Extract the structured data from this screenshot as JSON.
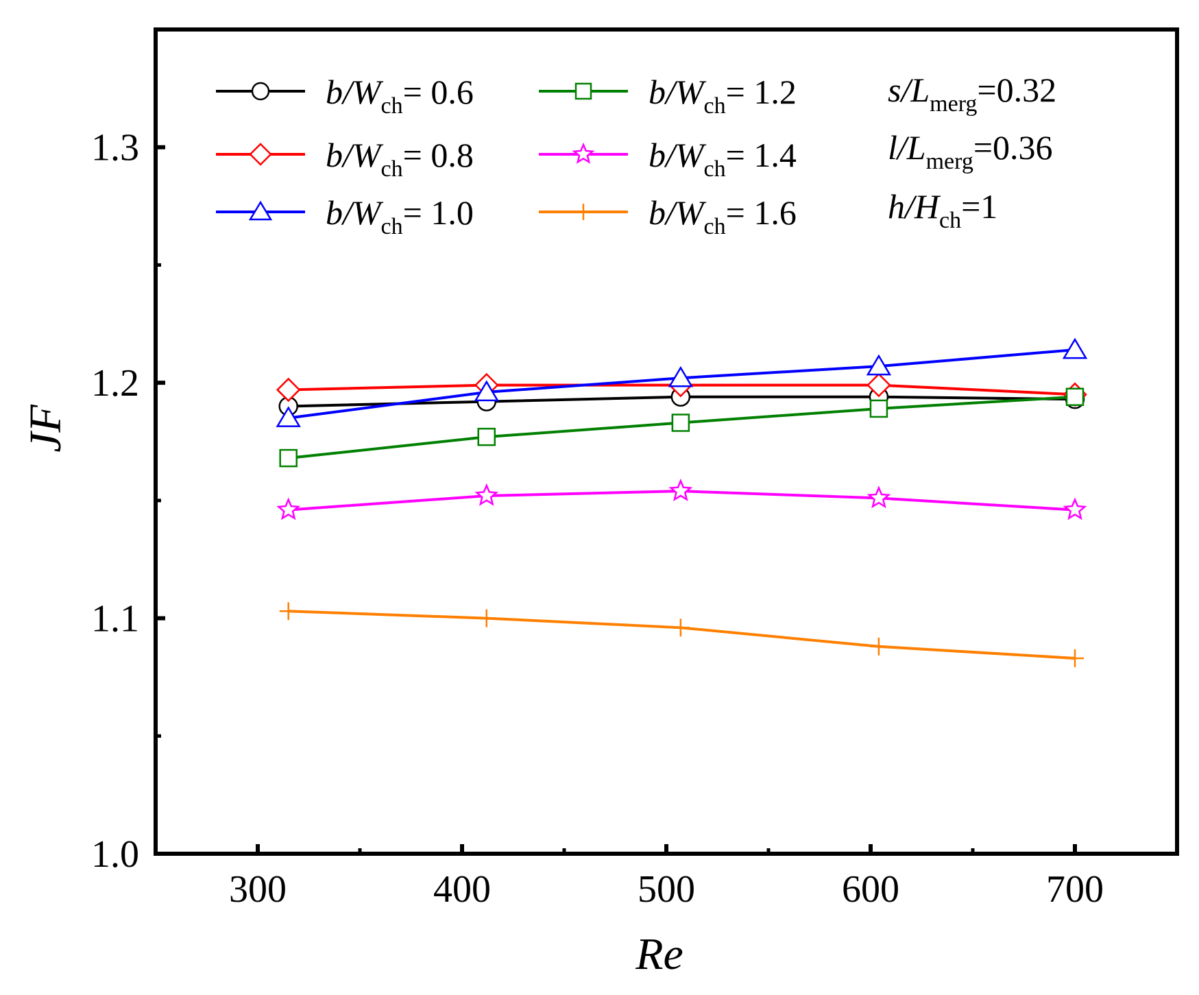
{
  "chart_data": {
    "type": "line",
    "title": "",
    "xlabel": "Re",
    "ylabel": "JF",
    "xlim": [
      250,
      750
    ],
    "ylim": [
      1.0,
      1.35
    ],
    "x_ticks": [
      300,
      400,
      500,
      600,
      700
    ],
    "x_tick_labels": [
      "300",
      "400",
      "500",
      "600",
      "700"
    ],
    "y_ticks": [
      1.0,
      1.1,
      1.2,
      1.3
    ],
    "y_tick_labels": [
      "1.0",
      "1.1",
      "1.2",
      "1.3"
    ],
    "x_minor_ticks": [
      350,
      450,
      550,
      650
    ],
    "y_minor_ticks": [
      1.05,
      1.15,
      1.25
    ],
    "grid": false,
    "legend_position": "top-left",
    "x": [
      315,
      412,
      507,
      604,
      700
    ],
    "series": [
      {
        "name": "b/Wch= 0.6",
        "label_var": "b",
        "label_den": "W",
        "label_sub": "ch",
        "label_val": "= 0.6",
        "color": "#000000",
        "marker": "circle",
        "values": [
          1.19,
          1.192,
          1.194,
          1.194,
          1.193
        ]
      },
      {
        "name": "b/Wch= 0.8",
        "label_var": "b",
        "label_den": "W",
        "label_sub": "ch",
        "label_val": "= 0.8",
        "color": "#ff0000",
        "marker": "diamond",
        "values": [
          1.197,
          1.199,
          1.199,
          1.199,
          1.195
        ]
      },
      {
        "name": "b/Wch= 1.0",
        "label_var": "b",
        "label_den": "W",
        "label_sub": "ch",
        "label_val": "= 1.0",
        "color": "#0000ff",
        "marker": "triangle",
        "values": [
          1.185,
          1.196,
          1.202,
          1.207,
          1.214
        ]
      },
      {
        "name": "b/Wch= 1.2",
        "label_var": "b",
        "label_den": "W",
        "label_sub": "ch",
        "label_val": "= 1.2",
        "color": "#008000",
        "marker": "square",
        "values": [
          1.168,
          1.177,
          1.183,
          1.189,
          1.194
        ]
      },
      {
        "name": "b/Wch= 1.4",
        "label_var": "b",
        "label_den": "W",
        "label_sub": "ch",
        "label_val": "= 1.4",
        "color": "#ff00ff",
        "marker": "star",
        "values": [
          1.146,
          1.152,
          1.154,
          1.151,
          1.146
        ]
      },
      {
        "name": "b/Wch= 1.6",
        "label_var": "b",
        "label_den": "W",
        "label_sub": "ch",
        "label_val": "= 1.6",
        "color": "#ff8000",
        "marker": "plus",
        "values": [
          1.103,
          1.1,
          1.096,
          1.088,
          1.083
        ]
      }
    ],
    "annotations": [
      {
        "var": "s",
        "den": "L",
        "sub": "merg",
        "val": "=0.32"
      },
      {
        "var": "l",
        "den": "L",
        "sub": "merg",
        "val": "=0.36"
      },
      {
        "var": "h",
        "den": "H",
        "sub": "ch",
        "val": "=1"
      }
    ]
  }
}
